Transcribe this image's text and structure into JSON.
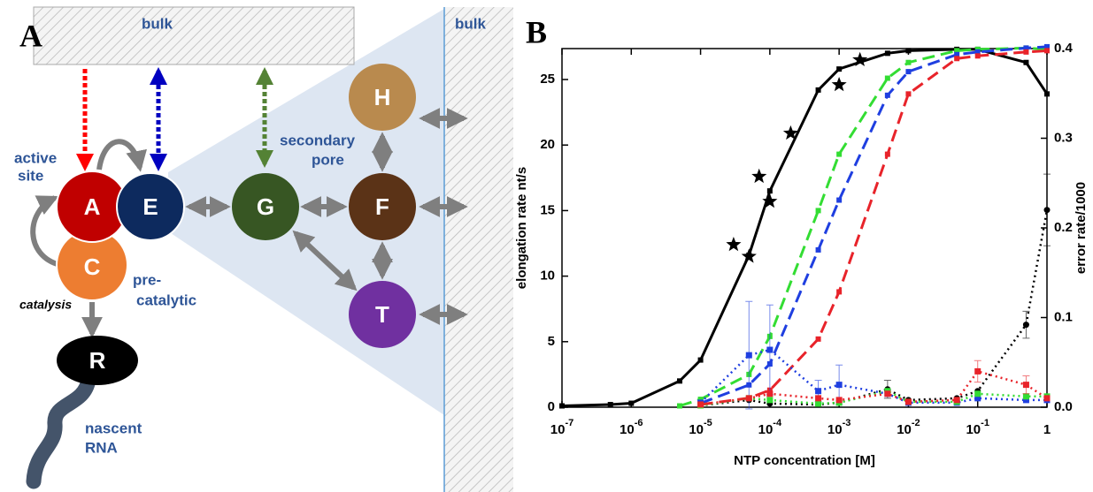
{
  "diagram": {
    "panel": "A",
    "bulk_top": "bulk",
    "bulk_right": "bulk",
    "nodes": [
      {
        "label": "A"
      },
      {
        "label": "E"
      },
      {
        "label": "C"
      },
      {
        "label": "G"
      },
      {
        "label": "F"
      },
      {
        "label": "H"
      },
      {
        "label": "T"
      },
      {
        "label": "R"
      }
    ],
    "active_site": [
      "active",
      "site"
    ],
    "secondary_pore": [
      "secondary",
      "pore"
    ],
    "pre_catalytic": [
      "pre-",
      "catalytic"
    ],
    "catalysis": "catalysis",
    "nascent_rna": [
      "nascent",
      "RNA"
    ]
  },
  "chart_data": {
    "type": "line",
    "panel": "B",
    "xlabel": "NTP concentration [M]",
    "ylabel": "elongation rate nt/s",
    "y2label": "error rate/1000",
    "xscale": "log",
    "xlim": [
      1e-07,
      1
    ],
    "xticks": [
      {
        "value": 1e-07,
        "label": "10",
        "exponent": "-7"
      },
      {
        "value": 1e-06,
        "label": "10",
        "exponent": "-6"
      },
      {
        "value": 1e-05,
        "label": "10",
        "exponent": "-5"
      },
      {
        "value": 0.0001,
        "label": "10",
        "exponent": "-4"
      },
      {
        "value": 0.001,
        "label": "10",
        "exponent": "-3"
      },
      {
        "value": 0.01,
        "label": "10",
        "exponent": "-2"
      },
      {
        "value": 0.1,
        "label": "10",
        "exponent": "-1"
      },
      1
    ],
    "ylim": [
      0,
      27.36
    ],
    "yticks": [
      0,
      5,
      10,
      15,
      20,
      25
    ],
    "y2lim": [
      0,
      0.4
    ],
    "y2ticks": [
      {
        "value": 0,
        "label": "0.0"
      },
      0.1,
      0.2,
      0.3,
      0.4
    ],
    "series": [
      {
        "color": "#000000",
        "dash": "solid",
        "marker": "square",
        "x": [
          1e-07,
          5e-07,
          1e-06,
          5e-06,
          1e-05,
          5e-05,
          0.0001,
          0.0005,
          0.001,
          0.005,
          0.01,
          0.05,
          0.1,
          0.5,
          1
        ],
        "values": [
          0.1,
          0.2,
          0.3,
          2.0,
          3.6,
          11.6,
          16.5,
          24.2,
          25.8,
          27.0,
          27.2,
          27.3,
          27.3,
          26.3,
          23.9
        ]
      },
      {
        "color": "#33dd33",
        "dash": "dashed",
        "marker": "square",
        "x": [
          5e-06,
          1e-05,
          5e-05,
          0.0001,
          0.0005,
          0.001,
          0.005,
          0.01,
          0.05,
          0.1,
          0.5,
          1
        ],
        "values": [
          0.1,
          0.6,
          2.5,
          5.4,
          15.0,
          19.3,
          25.1,
          26.3,
          27.2,
          27.3,
          27.4,
          27.3
        ]
      },
      {
        "color": "#1f3fe0",
        "dash": "dashed",
        "marker": "square",
        "x": [
          1e-05,
          5e-05,
          0.0001,
          0.0005,
          0.001,
          0.005,
          0.01,
          0.05,
          0.1,
          0.5,
          1
        ],
        "values": [
          0.3,
          1.7,
          3.3,
          12.0,
          15.8,
          23.8,
          25.6,
          26.9,
          27.1,
          27.4,
          27.5
        ]
      },
      {
        "color": "#e8232a",
        "dash": "dashed",
        "marker": "square",
        "x": [
          1e-05,
          5e-05,
          0.0001,
          0.0005,
          0.001,
          0.005,
          0.01,
          0.05,
          0.1,
          0.5,
          1
        ],
        "values": [
          0.2,
          0.7,
          1.3,
          5.2,
          8.8,
          19.3,
          23.9,
          26.6,
          26.8,
          27.1,
          27.2
        ]
      },
      {
        "color": "#000000",
        "dash": "none",
        "marker": "star",
        "x": [
          3e-05,
          5e-05,
          7e-05,
          0.0001,
          0.0002,
          0.001,
          0.002
        ],
        "values": [
          12.4,
          11.5,
          17.6,
          15.7,
          20.9,
          24.6,
          26.5
        ]
      },
      {
        "color": "#000000",
        "dash": "dotted",
        "marker": "circle",
        "axis": "y2",
        "x": [
          1e-05,
          5e-05,
          0.0001,
          0.0005,
          0.001,
          0.005,
          0.01,
          0.05,
          0.1,
          0.5,
          1
        ],
        "values": [
          0.002,
          0.008,
          0.004,
          0.003,
          0.005,
          0.02,
          0.008,
          0.01,
          0.018,
          0.092,
          0.22
        ],
        "errors": [
          null,
          null,
          null,
          null,
          null,
          0.01,
          null,
          null,
          null,
          0.015,
          0.04
        ]
      },
      {
        "color": "#1f3fe0",
        "dash": "dotted",
        "marker": "square",
        "axis": "y2",
        "x": [
          1e-05,
          5e-05,
          0.0001,
          0.0005,
          0.001,
          0.005,
          0.01,
          0.05,
          0.1,
          0.5,
          1
        ],
        "values": [
          0.005,
          0.058,
          0.064,
          0.018,
          0.025,
          0.015,
          0.005,
          0.005,
          0.01,
          0.008,
          0.008
        ],
        "errors": [
          null,
          0.06,
          0.05,
          0.012,
          0.022,
          null,
          null,
          null,
          null,
          null,
          null
        ]
      },
      {
        "color": "#33dd33",
        "dash": "dotted",
        "marker": "square",
        "axis": "y2",
        "x": [
          1e-05,
          5e-05,
          0.0001,
          0.0005,
          0.001,
          0.005,
          0.01,
          0.05,
          0.1,
          0.5,
          1
        ],
        "values": [
          0.002,
          0.01,
          0.008,
          0.004,
          0.005,
          0.018,
          0.006,
          0.006,
          0.015,
          0.012,
          0.012
        ],
        "errors": [
          null,
          null,
          null,
          null,
          null,
          null,
          null,
          null,
          null,
          null,
          null
        ]
      },
      {
        "color": "#e8232a",
        "dash": "dotted",
        "marker": "square",
        "axis": "y2",
        "x": [
          1e-05,
          5e-05,
          0.0001,
          0.0005,
          0.001,
          0.005,
          0.01,
          0.05,
          0.1,
          0.5,
          1
        ],
        "values": [
          0.003,
          0.01,
          0.015,
          0.01,
          0.008,
          0.015,
          0.006,
          0.008,
          0.04,
          0.025,
          0.01
        ],
        "errors": [
          null,
          null,
          null,
          null,
          null,
          null,
          null,
          null,
          0.012,
          0.01,
          null
        ]
      }
    ]
  }
}
